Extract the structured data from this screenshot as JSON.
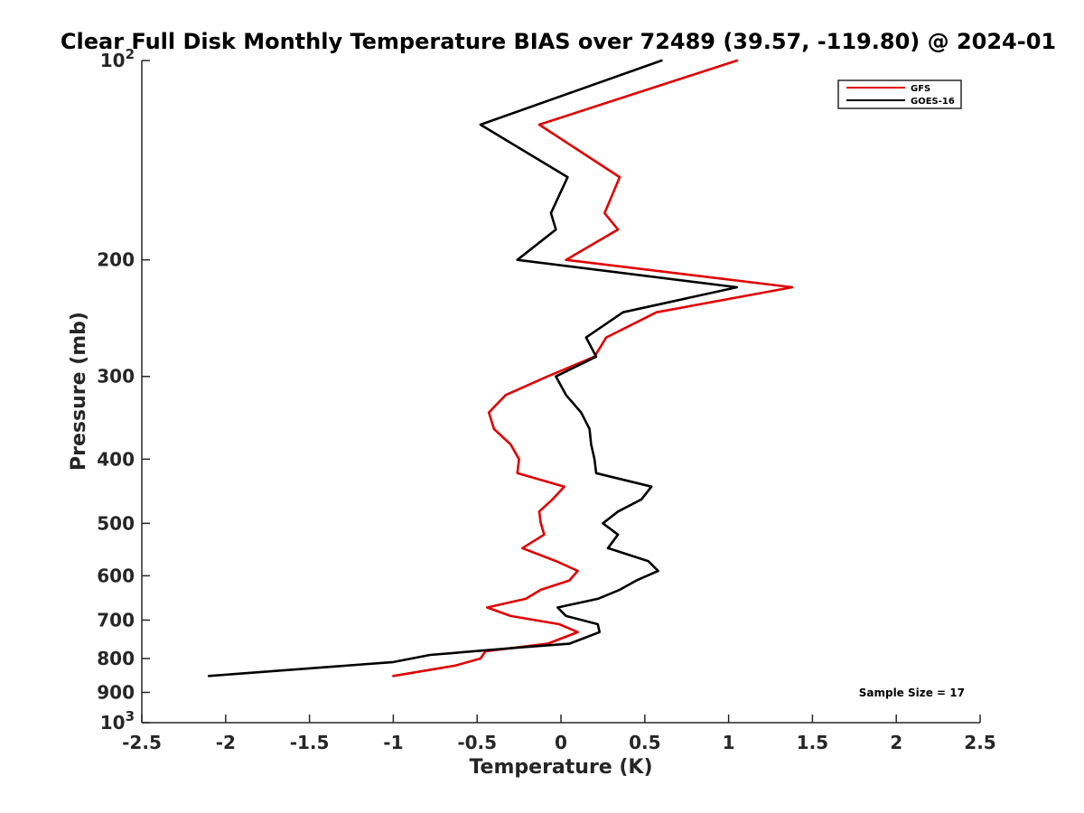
{
  "chart_data": {
    "type": "line",
    "title": "Clear Full Disk Monthly Temperature BIAS over 72489 (39.57, -119.80) @ 2024-01",
    "xlabel": "Temperature (K)",
    "ylabel": "Pressure (mb)",
    "xlim": [
      -2.5,
      2.5
    ],
    "ylim": [
      100,
      1000
    ],
    "yscale": "log",
    "y_reversed": true,
    "grid": false,
    "legend_position": "top-right",
    "x_ticks": [
      -2.5,
      -2,
      -1.5,
      -1,
      -0.5,
      0,
      0.5,
      1,
      1.5,
      2,
      2.5
    ],
    "x_tick_labels": [
      "-2.5",
      "-2",
      "-1.5",
      "-1",
      "-0.5",
      "0",
      "0.5",
      "1",
      "1.5",
      "2",
      "2.5"
    ],
    "y_ticks": [
      {
        "value": 100,
        "base": "10",
        "exp": "2"
      },
      {
        "value": 200,
        "label": "200"
      },
      {
        "value": 300,
        "label": "300"
      },
      {
        "value": 400,
        "label": "400"
      },
      {
        "value": 500,
        "label": "500"
      },
      {
        "value": 600,
        "label": "600"
      },
      {
        "value": 700,
        "label": "700"
      },
      {
        "value": 800,
        "label": "800"
      },
      {
        "value": 900,
        "label": "900"
      },
      {
        "value": 1000,
        "base": "10",
        "exp": "3"
      }
    ],
    "annotation": "Sample Size = 17",
    "series": [
      {
        "name": "GFS",
        "color": "#e00000",
        "points": [
          [
            1.05,
            100
          ],
          [
            -0.13,
            125
          ],
          [
            0.35,
            150
          ],
          [
            0.26,
            170
          ],
          [
            0.34,
            180
          ],
          [
            0.03,
            200
          ],
          [
            1.38,
            220
          ],
          [
            0.57,
            240
          ],
          [
            0.27,
            262
          ],
          [
            0.2,
            280
          ],
          [
            -0.08,
            300
          ],
          [
            -0.33,
            320
          ],
          [
            -0.43,
            340
          ],
          [
            -0.4,
            360
          ],
          [
            -0.3,
            380
          ],
          [
            -0.25,
            400
          ],
          [
            -0.26,
            420
          ],
          [
            0.02,
            440
          ],
          [
            -0.05,
            460
          ],
          [
            -0.13,
            480
          ],
          [
            -0.12,
            500
          ],
          [
            -0.1,
            520
          ],
          [
            -0.23,
            545
          ],
          [
            -0.03,
            570
          ],
          [
            0.1,
            590
          ],
          [
            0.05,
            610
          ],
          [
            -0.12,
            630
          ],
          [
            -0.21,
            650
          ],
          [
            -0.44,
            670
          ],
          [
            -0.3,
            690
          ],
          [
            -0.01,
            710
          ],
          [
            0.1,
            730
          ],
          [
            -0.08,
            760
          ],
          [
            -0.45,
            780
          ],
          [
            -0.48,
            800
          ],
          [
            -0.63,
            820
          ],
          [
            -1.0,
            850
          ]
        ]
      },
      {
        "name": "GOES-16",
        "color": "#000000",
        "points": [
          [
            0.6,
            100
          ],
          [
            -0.48,
            125
          ],
          [
            0.04,
            150
          ],
          [
            -0.06,
            170
          ],
          [
            -0.03,
            180
          ],
          [
            -0.26,
            200
          ],
          [
            1.05,
            220
          ],
          [
            0.37,
            240
          ],
          [
            0.15,
            262
          ],
          [
            0.21,
            280
          ],
          [
            -0.03,
            300
          ],
          [
            0.03,
            320
          ],
          [
            0.12,
            340
          ],
          [
            0.17,
            360
          ],
          [
            0.18,
            380
          ],
          [
            0.2,
            400
          ],
          [
            0.21,
            420
          ],
          [
            0.54,
            440
          ],
          [
            0.48,
            460
          ],
          [
            0.34,
            480
          ],
          [
            0.25,
            500
          ],
          [
            0.34,
            520
          ],
          [
            0.28,
            545
          ],
          [
            0.52,
            570
          ],
          [
            0.58,
            590
          ],
          [
            0.45,
            610
          ],
          [
            0.35,
            630
          ],
          [
            0.22,
            650
          ],
          [
            -0.02,
            670
          ],
          [
            0.03,
            690
          ],
          [
            0.22,
            710
          ],
          [
            0.23,
            730
          ],
          [
            0.05,
            760
          ],
          [
            -0.25,
            770
          ],
          [
            -0.78,
            790
          ],
          [
            -1.0,
            810
          ],
          [
            -2.1,
            850
          ]
        ]
      }
    ]
  }
}
